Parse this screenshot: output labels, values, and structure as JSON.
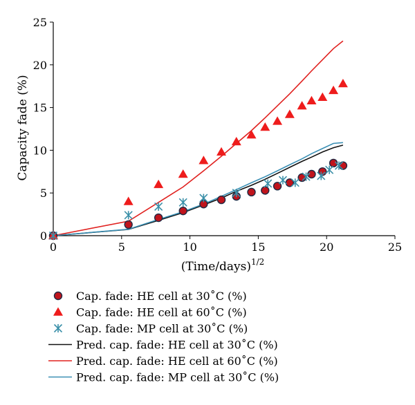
{
  "chart_data": {
    "type": "scatter",
    "xlabel": "(Time/days)",
    "xlabel_exponent": "1/2",
    "ylabel": "Capacity fade (%)",
    "xlim": [
      0,
      25
    ],
    "ylim": [
      0,
      25
    ],
    "x_ticks": [
      0,
      5,
      10,
      15,
      20,
      25
    ],
    "y_ticks": [
      0,
      5,
      10,
      15,
      20,
      25
    ],
    "grid": false,
    "legend_position": "below",
    "series": [
      {
        "name": "Cap. fade: HE cell at 30˚C (%)",
        "kind": "markers",
        "marker": "circle",
        "color": "#c0141c",
        "x": [
          0,
          5.5,
          7.7,
          9.5,
          11.0,
          12.3,
          13.4,
          14.5,
          15.5,
          16.4,
          17.3,
          18.2,
          18.9,
          19.7,
          20.5,
          21.2
        ],
        "y": [
          0,
          1.3,
          2.1,
          2.9,
          3.7,
          4.2,
          4.6,
          5.1,
          5.3,
          5.8,
          6.2,
          6.8,
          7.2,
          7.5,
          8.5,
          8.2
        ]
      },
      {
        "name": "Cap. fade: HE cell at 60˚C (%)",
        "kind": "markers",
        "marker": "triangle",
        "color": "#ee1c1c",
        "x": [
          0,
          5.5,
          7.7,
          9.5,
          11.0,
          12.3,
          13.4,
          14.5,
          15.5,
          16.4,
          17.3,
          18.2,
          18.9,
          19.7,
          20.5,
          21.2
        ],
        "y": [
          0,
          4.0,
          6.0,
          7.2,
          8.8,
          9.8,
          11.0,
          11.8,
          12.7,
          13.4,
          14.2,
          15.2,
          15.8,
          16.2,
          17.0,
          17.8
        ]
      },
      {
        "name": "Cap. fade: MP cell at 30˚C (%)",
        "kind": "markers",
        "marker": "asterisk",
        "color": "#3a8fa8",
        "x": [
          0,
          5.5,
          7.7,
          9.5,
          11.0,
          13.4,
          15.7,
          16.8,
          17.7,
          18.5,
          19.6,
          20.2,
          20.9
        ],
        "y": [
          0,
          2.4,
          3.4,
          3.9,
          4.4,
          5.0,
          6.1,
          6.5,
          6.2,
          6.9,
          7.0,
          7.7,
          8.2
        ]
      },
      {
        "name": "Pred. cap. fade: HE cell at 30˚C (%)",
        "kind": "line",
        "color": "#111111",
        "x": [
          0,
          5.5,
          7.7,
          9.5,
          11.0,
          12.3,
          13.4,
          14.5,
          15.5,
          16.4,
          17.3,
          18.2,
          18.9,
          19.7,
          20.5,
          21.2
        ],
        "y": [
          0,
          0.73,
          1.8,
          2.7,
          3.6,
          4.4,
          5.2,
          5.9,
          6.6,
          7.3,
          8.0,
          8.7,
          9.2,
          9.8,
          10.3,
          10.6
        ]
      },
      {
        "name": "Pred. cap. fade: HE cell at 60˚C (%)",
        "kind": "line",
        "color": "#e0201e",
        "x": [
          0,
          5.5,
          7.7,
          9.5,
          11.0,
          12.3,
          13.4,
          14.5,
          15.5,
          16.4,
          17.3,
          18.2,
          18.9,
          19.7,
          20.5,
          21.2
        ],
        "y": [
          0,
          1.7,
          3.9,
          5.7,
          7.6,
          9.3,
          10.8,
          12.3,
          13.8,
          15.2,
          16.6,
          18.1,
          19.3,
          20.6,
          21.9,
          22.8
        ]
      },
      {
        "name": "Pred. cap. fade: MP cell at 30˚C (%)",
        "kind": "line",
        "color": "#3a8fb4",
        "x": [
          0,
          5.5,
          7.7,
          9.5,
          11.0,
          12.3,
          13.4,
          14.5,
          15.5,
          16.4,
          17.3,
          18.2,
          18.9,
          19.7,
          20.5,
          21.2
        ],
        "y": [
          0,
          0.75,
          1.9,
          2.8,
          3.7,
          4.6,
          5.4,
          6.2,
          6.9,
          7.6,
          8.3,
          9.0,
          9.6,
          10.2,
          10.8,
          10.9
        ]
      }
    ]
  }
}
